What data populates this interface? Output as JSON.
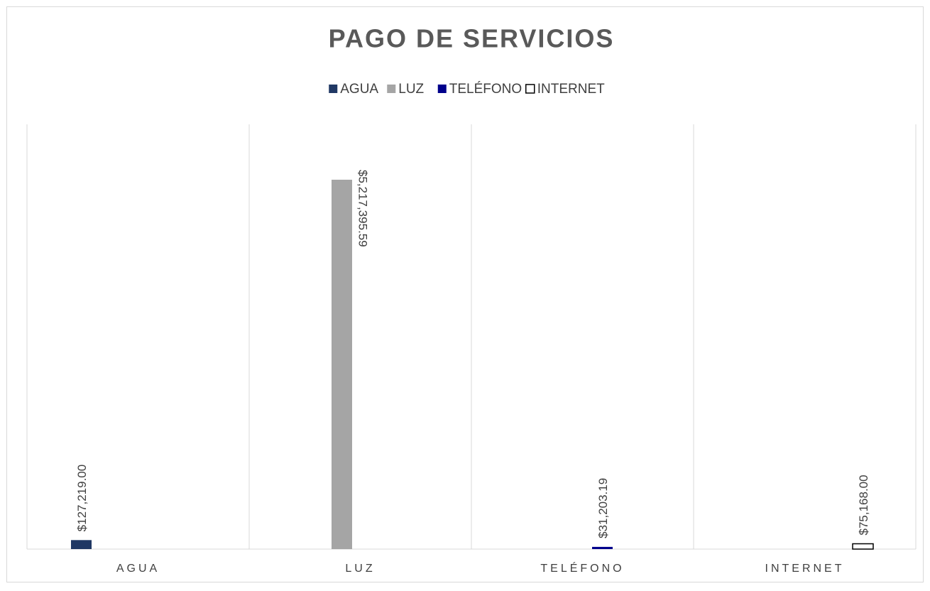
{
  "chart_data": {
    "type": "bar",
    "title": "PAGO DE SERVICIOS",
    "categories": [
      "AGUA",
      "LUZ",
      "TELÉFONO",
      "INTERNET"
    ],
    "series": [
      {
        "name": "AGUA",
        "color": "#203864",
        "values": [
          127219.0,
          null,
          null,
          null
        ],
        "value_labels": [
          "$127,219.00",
          null,
          null,
          null
        ]
      },
      {
        "name": "LUZ",
        "color": "#a5a5a5",
        "values": [
          null,
          5217395.59,
          null,
          null
        ],
        "value_labels": [
          null,
          "$5,217,395.59",
          null,
          null
        ]
      },
      {
        "name": "TELÉFONO",
        "color": "#00008b",
        "values": [
          null,
          null,
          31203.19,
          null
        ],
        "value_labels": [
          null,
          null,
          "$31,203.19",
          null
        ]
      },
      {
        "name": "INTERNET",
        "color": "#ffffff",
        "values": [
          null,
          null,
          null,
          75168.0
        ],
        "value_labels": [
          null,
          null,
          null,
          "$75,168.00"
        ]
      }
    ],
    "ylim": [
      0,
      6000000
    ],
    "legend": "top"
  }
}
